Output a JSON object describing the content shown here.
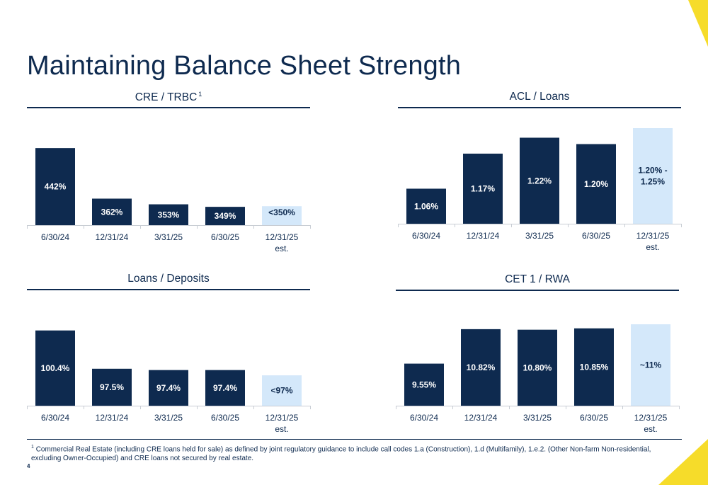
{
  "page": {
    "title": "Maintaining Balance Sheet Strength",
    "page_number": "4",
    "footnote": {
      "marker": "1",
      "text": "Commercial Real Estate (including CRE loans held for sale) as defined by joint regulatory guidance to include call codes 1.a (Construction), 1.d (Multifamily), 1.e.2. (Other Non-farm Non-residential, excluding Owner-Occupied) and CRE loans not secured by real estate."
    }
  },
  "colors": {
    "navy": "#0e2a4f",
    "estimate": "#d4e8fa",
    "axis": "#c8cdd4",
    "accent_yellow": "#f6dc2a"
  },
  "chart_data": [
    {
      "type": "bar",
      "title": "CRE / TRBC",
      "title_superscript": "1",
      "categories": [
        "6/30/24",
        "12/31/24",
        "3/31/25",
        "6/30/25",
        "12/31/25 est."
      ],
      "values": [
        442,
        362,
        353,
        349,
        350
      ],
      "labels": [
        "442%",
        "362%",
        "353%",
        "349%",
        "<350%"
      ],
      "estimate_index": 4,
      "unit": "%",
      "ylim": [
        320,
        450
      ]
    },
    {
      "type": "bar",
      "title": "ACL / Loans",
      "categories": [
        "6/30/24",
        "12/31/24",
        "3/31/25",
        "6/30/25",
        "12/31/25 est."
      ],
      "values": [
        1.06,
        1.17,
        1.22,
        1.2,
        1.25
      ],
      "labels": [
        "1.06%",
        "1.17%",
        "1.22%",
        "1.20%",
        "1.20% - 1.25%"
      ],
      "estimate_index": 4,
      "unit": "%",
      "ylim": [
        0.95,
        1.25
      ]
    },
    {
      "type": "bar",
      "title": "Loans / Deposits",
      "categories": [
        "6/30/24",
        "12/31/24",
        "3/31/25",
        "6/30/25",
        "12/31/25 est."
      ],
      "values": [
        100.4,
        97.5,
        97.4,
        97.4,
        97.0
      ],
      "labels": [
        "100.4%",
        "97.5%",
        "97.4%",
        "97.4%",
        "<97%"
      ],
      "estimate_index": 4,
      "unit": "%",
      "ylim": [
        94.7,
        100.6
      ]
    },
    {
      "type": "bar",
      "title": "CET 1 / RWA",
      "categories": [
        "6/30/24",
        "12/31/24",
        "3/31/25",
        "6/30/25",
        "12/31/25 est."
      ],
      "values": [
        9.55,
        10.82,
        10.8,
        10.85,
        11.0
      ],
      "labels": [
        "9.55%",
        "10.82%",
        "10.80%",
        "10.85%",
        "~11%"
      ],
      "estimate_index": 4,
      "unit": "%",
      "ylim": [
        8.0,
        11.0
      ]
    }
  ]
}
